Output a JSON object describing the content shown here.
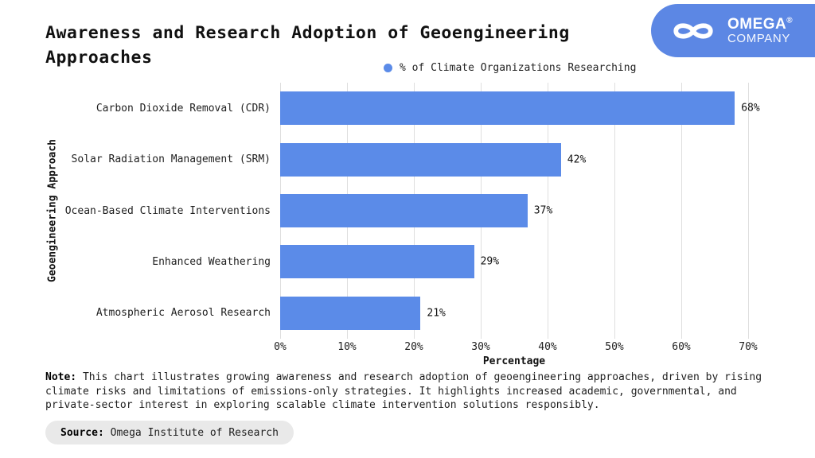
{
  "header": {
    "title": "Awareness and Research Adoption of Geoengineering Approaches"
  },
  "logo": {
    "brand": "OMEGA",
    "registered_mark": "®",
    "subtitle": "COMPANY",
    "bg_color": "#5c87e4",
    "icon": "infinity-icon"
  },
  "legend": {
    "label": "% of Climate Organizations Researching",
    "marker_color": "#5b8be8"
  },
  "chart_data": {
    "type": "bar",
    "orientation": "horizontal",
    "title": "Awareness and Research Adoption of Geoengineering Approaches",
    "series_name": "% of Climate Organizations Researching",
    "categories": [
      "Carbon Dioxide Removal (CDR)",
      "Solar Radiation Management (SRM)",
      "Ocean-Based Climate Interventions",
      "Enhanced Weathering",
      "Atmospheric Aerosol Research"
    ],
    "values": [
      68,
      42,
      37,
      29,
      21
    ],
    "value_labels": [
      "68%",
      "42%",
      "37%",
      "29%",
      "21%"
    ],
    "xlabel": "Percentage",
    "ylabel": "Geoengineering Approach",
    "xlim": [
      0,
      70
    ],
    "xticks": [
      "0%",
      "10%",
      "20%",
      "30%",
      "40%",
      "50%",
      "60%",
      "70%"
    ],
    "bar_color": "#5b8be8",
    "grid": true,
    "legend_position": "top"
  },
  "note": {
    "label": "Note:",
    "text": "This chart illustrates growing awareness and research adoption of geoengineering approaches, driven by rising climate risks and limitations of emissions-only strategies. It highlights increased academic, governmental, and private-sector interest in exploring scalable climate intervention solutions responsibly."
  },
  "source": {
    "label": "Source:",
    "text": "Omega Institute of Research"
  }
}
